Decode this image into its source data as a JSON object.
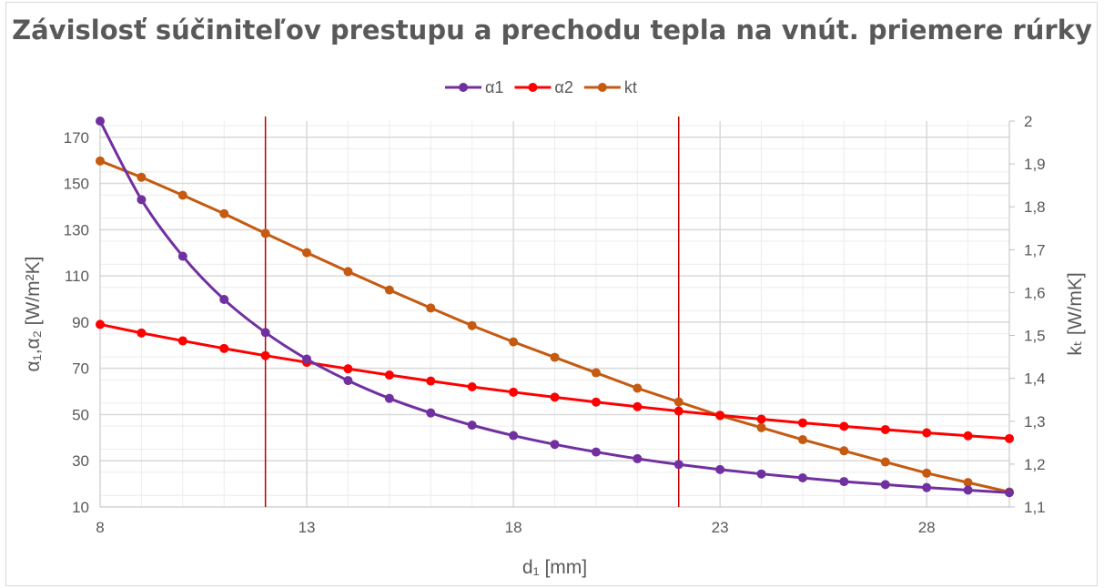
{
  "chart_data": {
    "type": "line",
    "title": "Závislosť súčiniteľov prestupu a prechodu tepla na vnút. priemere rúrky",
    "xlabel": "d₁ [mm]",
    "ylabel": "α₁,α₂ [W/m²K]",
    "y2label": "kₜ [W/mK]",
    "xlim": [
      8,
      30
    ],
    "ylim": [
      10,
      177
    ],
    "y2lim": [
      1.1,
      2.0
    ],
    "x_ticks": [
      "8",
      "13",
      "18",
      "23",
      "28"
    ],
    "y_ticks": [
      "10",
      "30",
      "50",
      "70",
      "90",
      "110",
      "130",
      "150",
      "170"
    ],
    "y2_ticks": [
      "1,1",
      "1,2",
      "1,3",
      "1,4",
      "1,5",
      "1,6",
      "1,7",
      "1,8",
      "1,9",
      "2"
    ],
    "grid": true,
    "legend_position": "top",
    "vertical_markers": [
      12,
      22
    ],
    "x": [
      8,
      9,
      10,
      11,
      12,
      13,
      14,
      15,
      16,
      17,
      18,
      19,
      20,
      21,
      22,
      23,
      24,
      25,
      26,
      27,
      28,
      29,
      30
    ],
    "series": [
      {
        "name": "α1",
        "axis": "left",
        "color": "#7030a0",
        "smooth": true,
        "values": [
          177.0,
          143.0,
          118.5,
          99.8,
          85.5,
          74.0,
          64.7,
          57.0,
          50.7,
          45.4,
          40.9,
          37.1,
          33.8,
          30.9,
          28.4,
          26.2,
          24.3,
          22.6,
          21.0,
          19.7,
          18.4,
          17.3,
          16.2
        ]
      },
      {
        "name": "α2",
        "axis": "left",
        "color": "#ff0000",
        "smooth": false,
        "values": [
          89.0,
          85.3,
          81.9,
          78.6,
          75.5,
          72.6,
          69.8,
          67.1,
          64.5,
          62.0,
          59.7,
          57.5,
          55.4,
          53.4,
          51.5,
          49.7,
          48.0,
          46.4,
          44.9,
          43.5,
          42.1,
          40.8,
          39.6
        ]
      },
      {
        "name": "kt",
        "axis": "right",
        "color": "#c55a11",
        "smooth": false,
        "values": [
          1.907,
          1.869,
          1.827,
          1.784,
          1.738,
          1.693,
          1.649,
          1.606,
          1.564,
          1.523,
          1.485,
          1.449,
          1.413,
          1.377,
          1.345,
          1.313,
          1.285,
          1.257,
          1.231,
          1.205,
          1.179,
          1.157,
          1.135
        ]
      }
    ],
    "colors": {
      "grid": "#d9d9d9",
      "marker_line": "#c00000",
      "text": "#595959"
    }
  }
}
